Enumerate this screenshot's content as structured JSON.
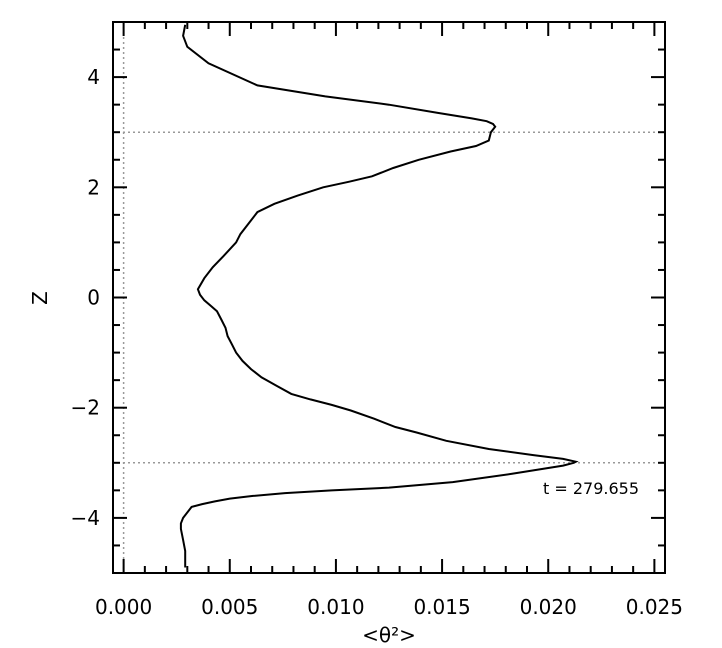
{
  "chart_data": {
    "type": "line",
    "title": "",
    "xlabel": "<θ²>",
    "ylabel": "Z",
    "xlim": [
      -0.0005,
      0.0255
    ],
    "ylim": [
      -5,
      5
    ],
    "xticks": [
      0.0,
      0.005,
      0.01,
      0.015,
      0.02,
      0.025
    ],
    "xtick_labels": [
      "0.000",
      "0.005",
      "0.010",
      "0.015",
      "0.020",
      "0.025"
    ],
    "yticks": [
      -4,
      -2,
      0,
      2,
      4
    ],
    "ytick_labels": [
      "−4",
      "−2",
      "0",
      "2",
      "4"
    ],
    "grid": false,
    "annotation": "t = 279.655",
    "reference_lines": {
      "horizontal": [
        3,
        -3
      ],
      "vertical": [
        0
      ]
    },
    "series": [
      {
        "x": [
          0.0029,
          0.0029,
          0.0028,
          0.0027,
          0.0027,
          0.0028,
          0.0032,
          0.0037,
          0.0043,
          0.005,
          0.0061,
          0.0076,
          0.0098,
          0.0125,
          0.0155,
          0.0183,
          0.0207,
          0.0212,
          0.0213,
          0.0207,
          0.0193,
          0.0172,
          0.0152,
          0.0138,
          0.0128,
          0.0118,
          0.0107,
          0.0098,
          0.0088,
          0.0079,
          0.0072,
          0.0065,
          0.006,
          0.0056,
          0.0053,
          0.0051,
          0.0049,
          0.0048,
          0.0046,
          0.0044,
          0.0041,
          0.0038,
          0.0036,
          0.0035,
          0.0038,
          0.0042,
          0.0047,
          0.0053,
          0.0055,
          0.0059,
          0.0063,
          0.0071,
          0.0082,
          0.0094,
          0.0106,
          0.0117,
          0.0127,
          0.0139,
          0.0154,
          0.0166,
          0.0172,
          0.0173,
          0.0175,
          0.0174,
          0.0171,
          0.0164,
          0.0148,
          0.0125,
          0.0095,
          0.0063,
          0.004,
          0.003,
          0.0028,
          0.0029
        ],
        "y": [
          -4.9,
          -4.6,
          -4.4,
          -4.2,
          -4.1,
          -4.0,
          -3.8,
          -3.75,
          -3.7,
          -3.65,
          -3.6,
          -3.55,
          -3.5,
          -3.45,
          -3.35,
          -3.2,
          -3.05,
          -3.0,
          -2.98,
          -2.93,
          -2.86,
          -2.75,
          -2.6,
          -2.45,
          -2.35,
          -2.2,
          -2.05,
          -1.95,
          -1.85,
          -1.75,
          -1.6,
          -1.45,
          -1.3,
          -1.15,
          -1.0,
          -0.85,
          -0.7,
          -0.55,
          -0.4,
          -0.25,
          -0.15,
          -0.05,
          0.05,
          0.15,
          0.35,
          0.55,
          0.75,
          1.0,
          1.15,
          1.35,
          1.55,
          1.7,
          1.85,
          2.0,
          2.1,
          2.2,
          2.35,
          2.5,
          2.65,
          2.75,
          2.85,
          3.0,
          3.1,
          3.15,
          3.2,
          3.25,
          3.35,
          3.5,
          3.65,
          3.85,
          4.25,
          4.55,
          4.75,
          4.95
        ]
      }
    ]
  }
}
